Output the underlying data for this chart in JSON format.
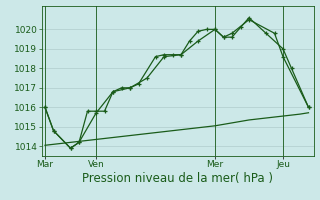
{
  "bg_color": "#cce8e8",
  "grid_color": "#b0cccc",
  "line_color": "#1a5c1a",
  "xlabel": "Pression niveau de la mer( hPa )",
  "xlabel_fontsize": 8.5,
  "ylim": [
    1013.5,
    1021.2
  ],
  "yticks": [
    1014,
    1015,
    1016,
    1017,
    1018,
    1019,
    1020
  ],
  "ytick_fontsize": 6.5,
  "xtick_labels": [
    "Mar",
    "Ven",
    "Mer",
    "Jeu"
  ],
  "xtick_positions": [
    0,
    3,
    10,
    14
  ],
  "vline_positions": [
    0,
    3,
    10,
    14
  ],
  "series1_x": [
    0,
    0.5,
    1.5,
    2.0,
    2.5,
    3.0,
    3.5,
    4.0,
    4.5,
    5.0,
    5.5,
    6.5,
    7.0,
    7.5,
    8.0,
    8.5,
    9.0,
    9.5,
    10.0,
    10.5,
    11.0,
    11.5,
    12.0,
    13.0,
    14.0,
    14.5,
    15.5
  ],
  "series1_y": [
    1016.0,
    1014.8,
    1013.9,
    1014.2,
    1015.8,
    1015.8,
    1015.8,
    1016.8,
    1017.0,
    1017.0,
    1017.2,
    1018.6,
    1018.7,
    1018.7,
    1018.7,
    1019.4,
    1019.9,
    1020.0,
    1020.0,
    1019.6,
    1019.6,
    1020.1,
    1020.6,
    1019.8,
    1019.0,
    1018.0,
    1016.0
  ],
  "series2_x": [
    0,
    0.5,
    1.5,
    2.0,
    3.0,
    4.0,
    5.0,
    6.0,
    7.0,
    8.0,
    9.0,
    10.0,
    10.5,
    11.0,
    12.0,
    13.5,
    14.0,
    15.5
  ],
  "series2_y": [
    1016.0,
    1014.8,
    1013.9,
    1014.2,
    1015.7,
    1016.8,
    1017.0,
    1017.5,
    1018.6,
    1018.7,
    1019.4,
    1020.0,
    1019.6,
    1019.8,
    1020.5,
    1019.8,
    1018.6,
    1016.0
  ],
  "series3_x": [
    0,
    1,
    2,
    3,
    4,
    5,
    6,
    7,
    8,
    9,
    10,
    11,
    12,
    13,
    14,
    15,
    15.5
  ],
  "series3_y": [
    1014.05,
    1014.15,
    1014.25,
    1014.35,
    1014.45,
    1014.55,
    1014.65,
    1014.75,
    1014.85,
    1014.95,
    1015.05,
    1015.2,
    1015.35,
    1015.45,
    1015.55,
    1015.65,
    1015.72
  ],
  "figsize": [
    3.2,
    2.0
  ],
  "dpi": 100
}
